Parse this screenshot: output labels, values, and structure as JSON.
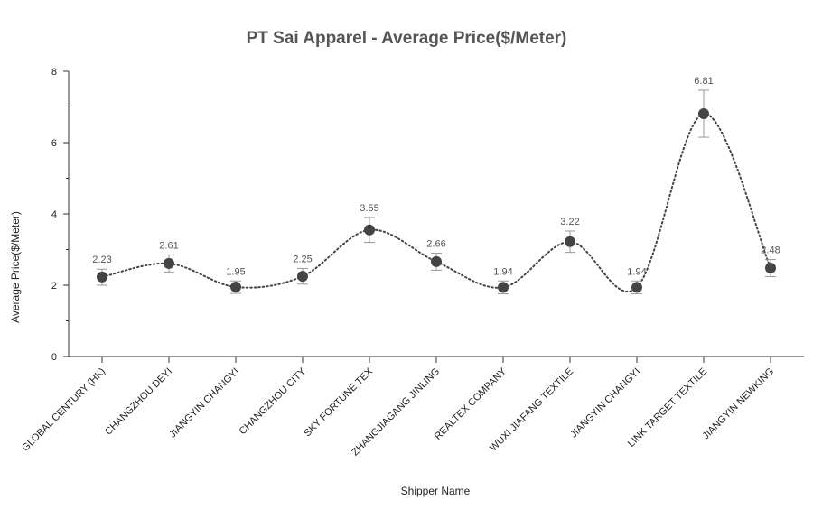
{
  "chart_data": {
    "type": "line",
    "title": "PT Sai Apparel - Average Price($/Meter)",
    "xlabel": "Shipper Name",
    "ylabel": "Average Price($/Meter)",
    "ylim": [
      0,
      8
    ],
    "yticks": [
      0,
      2,
      4,
      6,
      8
    ],
    "grid": false,
    "line_style": "dotted",
    "categories": [
      "GLOBAL CENTURY (HK)",
      "CHANGZHOU DEYI",
      "JIANGYIN CHANGYI",
      "CHANGZHOU CITY",
      "SKY FORTUNE TEX",
      "ZHANGJIAGANG JINLING",
      "REALTEX COMPANY",
      "WUXI JIAFANG TEXTILE",
      "JIANGYIN CHANGYI",
      "LINK TARGET TEXTILE",
      "JIANGYIN NEWKING"
    ],
    "values": [
      2.23,
      2.61,
      1.95,
      2.25,
      3.55,
      2.66,
      1.94,
      3.22,
      1.94,
      6.81,
      2.48
    ],
    "value_labels": [
      "2.23",
      "2.61",
      "1.95",
      "2.25",
      "3.55",
      "2.66",
      "1.94",
      "3.22",
      "1.94",
      "6.81",
      "2.48"
    ],
    "error_low": [
      2.0,
      2.37,
      1.77,
      2.03,
      3.2,
      2.42,
      1.76,
      2.92,
      1.76,
      6.15,
      2.24
    ],
    "error_high": [
      2.45,
      2.85,
      2.12,
      2.47,
      3.9,
      2.9,
      2.12,
      3.52,
      2.12,
      7.47,
      2.72
    ],
    "colors": {
      "marker": "#444444",
      "line": "#444444",
      "errorbar": "#999999",
      "axis": "#333333",
      "text": "#555555"
    }
  }
}
